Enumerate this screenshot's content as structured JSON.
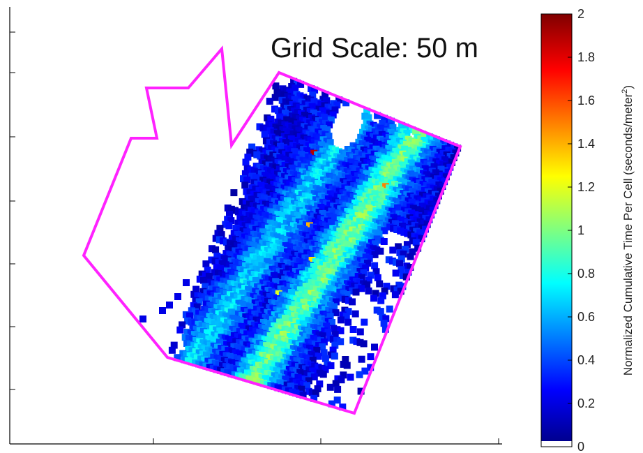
{
  "chart_data": {
    "type": "heatmap",
    "title": "",
    "annotation": "Grid Scale: 50 m",
    "colorbar": {
      "label_main": "Normalized Cumulative Time Per Cell (seconds/meter",
      "label_sup": "2",
      "label_end": ")",
      "range": [
        0,
        2
      ],
      "ticks": [
        "0",
        "0.2",
        "0.4",
        "0.6",
        "0.8",
        "1",
        "1.2",
        "1.4",
        "1.6",
        "1.8",
        "2"
      ],
      "colormap": "jet",
      "zero_color": "#ffffff"
    },
    "grid": {
      "cols": 52,
      "rows": 56,
      "cell_scale": "50 m",
      "peak_values": [
        {
          "col": 16,
          "row": 11,
          "value": 1.9
        },
        {
          "col": 37,
          "row": 12,
          "value": 1.5
        },
        {
          "col": 22,
          "row": 24,
          "value": 1.4
        },
        {
          "col": 26,
          "row": 30,
          "value": 1.3
        },
        {
          "col": 21,
          "row": 38,
          "value": 1.2
        }
      ]
    },
    "boundary_color": "#ff22ff"
  }
}
